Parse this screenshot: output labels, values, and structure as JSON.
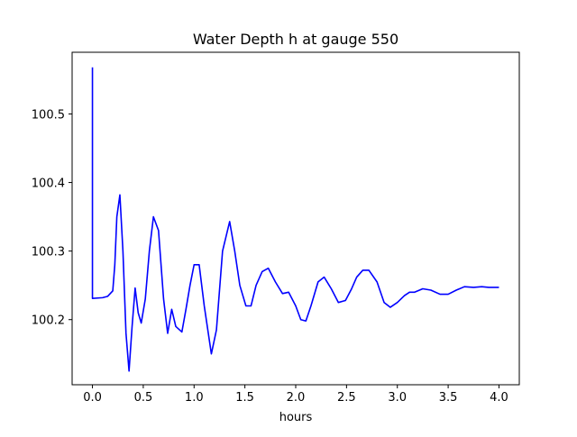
{
  "chart_data": {
    "type": "line",
    "title": "Water Depth h at gauge 550",
    "xlabel": "hours",
    "ylabel": "",
    "xlim": [
      -0.2,
      4.2
    ],
    "ylim": [
      100.105,
      100.59
    ],
    "xticks": [
      0.0,
      0.5,
      1.0,
      1.5,
      2.0,
      2.5,
      3.0,
      3.5,
      4.0
    ],
    "xtick_labels": [
      "0.0",
      "0.5",
      "1.0",
      "1.5",
      "2.0",
      "2.5",
      "3.0",
      "3.5",
      "4.0"
    ],
    "yticks": [
      100.2,
      100.3,
      100.4,
      100.5
    ],
    "ytick_labels": [
      "100.2",
      "100.3",
      "100.4",
      "100.5"
    ],
    "grid": false,
    "line_color": "#0000ff",
    "series": [
      {
        "x": [
          0.0,
          0.0,
          0.0,
          0.1,
          0.15,
          0.2,
          0.22,
          0.24,
          0.27,
          0.3,
          0.33,
          0.36,
          0.39,
          0.42,
          0.45,
          0.48,
          0.52,
          0.56,
          0.6,
          0.65,
          0.7,
          0.74,
          0.78,
          0.82,
          0.88,
          0.92,
          0.96,
          1.0,
          1.05,
          1.1,
          1.17,
          1.22,
          1.28,
          1.35,
          1.4,
          1.45,
          1.51,
          1.56,
          1.61,
          1.67,
          1.73,
          1.8,
          1.87,
          1.93,
          2.0,
          2.05,
          2.1,
          2.15,
          2.22,
          2.28,
          2.35,
          2.42,
          2.49,
          2.55,
          2.6,
          2.66,
          2.72,
          2.8,
          2.87,
          2.93,
          3.0,
          3.07,
          3.12,
          3.17,
          3.25,
          3.33,
          3.42,
          3.5,
          3.58,
          3.66,
          3.75,
          3.83,
          3.9,
          3.96,
          4.0
        ],
        "y": [
          100.568,
          100.568,
          100.231,
          100.232,
          100.234,
          100.242,
          100.28,
          100.35,
          100.382,
          100.3,
          100.18,
          100.125,
          100.19,
          100.246,
          100.21,
          100.195,
          100.23,
          100.3,
          100.35,
          100.33,
          100.23,
          100.18,
          100.215,
          100.19,
          100.182,
          100.215,
          100.25,
          100.28,
          100.28,
          100.22,
          100.15,
          100.185,
          100.3,
          100.343,
          100.3,
          100.25,
          100.22,
          100.22,
          100.25,
          100.27,
          100.275,
          100.255,
          100.238,
          100.24,
          100.22,
          100.2,
          100.198,
          100.22,
          100.255,
          100.262,
          100.245,
          100.225,
          100.228,
          100.245,
          100.262,
          100.272,
          100.272,
          100.255,
          100.225,
          100.218,
          100.225,
          100.235,
          100.24,
          100.24,
          100.245,
          100.243,
          100.237,
          100.237,
          100.243,
          100.248,
          100.247,
          100.248,
          100.247,
          100.247,
          100.247
        ]
      }
    ]
  }
}
